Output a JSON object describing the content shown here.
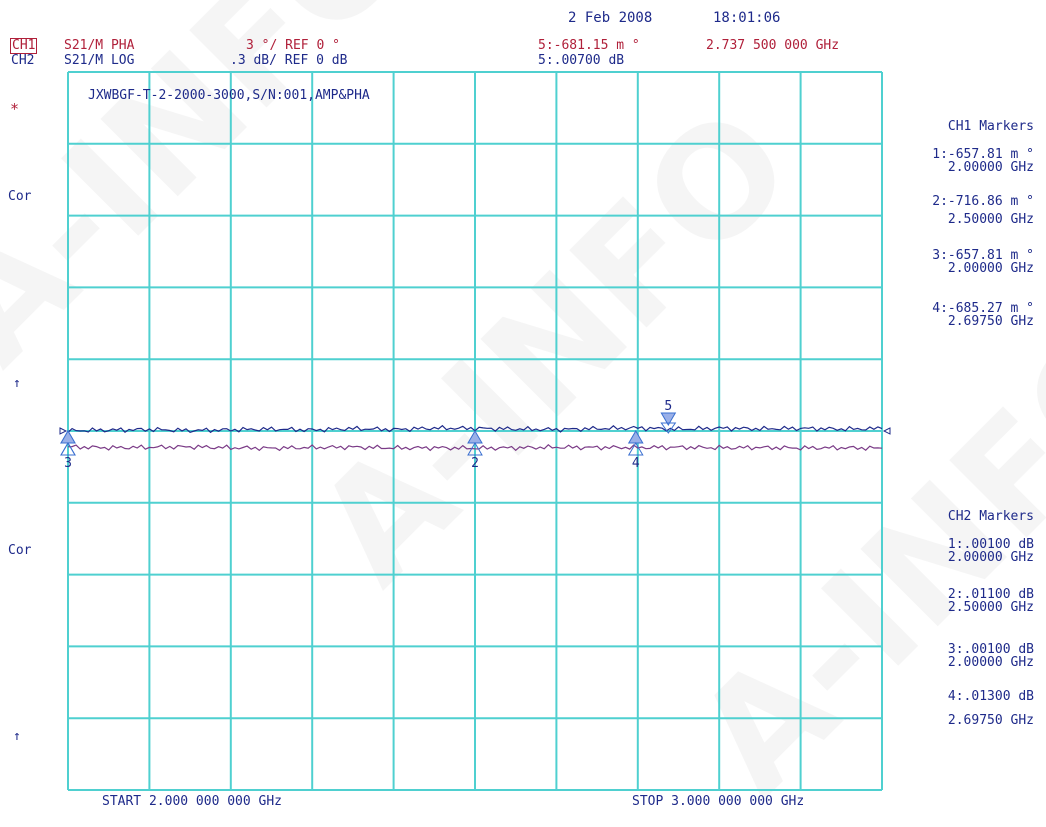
{
  "header": {
    "date": "2 Feb 2008",
    "time": "18:01:06",
    "ch1_tag": "CH1",
    "ch2_tag": "CH2",
    "ch1_meas": "S21/M PHA",
    "ch2_meas": "S21/M LOG",
    "ch1_scale": "3 °/ REF 0 °",
    "ch2_scale": ".3 dB/ REF 0 dB",
    "active_marker_ch1": "5:-681.15 m °",
    "active_marker_ch2": "5:.00700 dB",
    "active_marker_freq": "2.737 500 000 GHz"
  },
  "left_labels": {
    "star": "*",
    "cor1": "Cor",
    "arrow1": "↑",
    "cor2": "Cor",
    "arrow2": "↑"
  },
  "plot_title": "JXWBGF-T-2-2000-3000,S/N:001,AMP&PHA",
  "start_label": "START  2.000 000 000 GHz",
  "stop_label": "STOP  3.000 000 000 GHz",
  "ch1_markers": {
    "title": "CH1 Markers",
    "items": [
      {
        "value": "1:-657.81 m °",
        "freq": "2.00000 GHz"
      },
      {
        "value": "2:-716.86 m °",
        "freq": "2.50000 GHz"
      },
      {
        "value": "3:-657.81 m °",
        "freq": "2.00000 GHz"
      },
      {
        "value": "4:-685.27 m °",
        "freq": "2.69750 GHz"
      }
    ]
  },
  "ch2_markers": {
    "title": "CH2 Markers",
    "items": [
      {
        "value": "1:.00100 dB",
        "freq": "2.00000 GHz"
      },
      {
        "value": "2:.01100 dB",
        "freq": "2.50000 GHz"
      },
      {
        "value": "3:.00100 dB",
        "freq": "2.00000 GHz"
      },
      {
        "value": "4:.01300 dB",
        "freq": "2.69750 GHz"
      }
    ]
  },
  "watermark_text": "A-INFO",
  "colors": {
    "grid": "#4fd0d0",
    "ch1_trace": "#7a3a86",
    "ch2_trace": "#1e2a8a",
    "text": "#1e2a8a",
    "marker": "#3a6fd0"
  },
  "chart_data": {
    "type": "line",
    "x_unit": "GHz",
    "xlim": [
      2.0,
      3.0
    ],
    "grid": true,
    "divisions": {
      "x": 10,
      "y": 10
    },
    "series": [
      {
        "name": "S21/M PHA",
        "unit": "°",
        "scale_per_div": 3,
        "ref": 0,
        "x": [
          2.0,
          2.05,
          2.1,
          2.15,
          2.2,
          2.25,
          2.3,
          2.35,
          2.4,
          2.45,
          2.5,
          2.55,
          2.6,
          2.65,
          2.7,
          2.75,
          2.8,
          2.85,
          2.9,
          2.95,
          3.0
        ],
        "values": [
          -0.66,
          -0.7,
          -0.68,
          -0.66,
          -0.7,
          -0.72,
          -0.69,
          -0.67,
          -0.71,
          -0.7,
          -0.72,
          -0.7,
          -0.68,
          -0.69,
          -0.69,
          -0.68,
          -0.7,
          -0.69,
          -0.71,
          -0.7,
          -0.72
        ]
      },
      {
        "name": "S21/M LOG",
        "unit": "dB",
        "scale_per_div": 0.3,
        "ref": 0,
        "x": [
          2.0,
          2.05,
          2.1,
          2.15,
          2.2,
          2.25,
          2.3,
          2.35,
          2.4,
          2.45,
          2.5,
          2.55,
          2.6,
          2.65,
          2.7,
          2.75,
          2.8,
          2.85,
          2.9,
          2.95,
          3.0
        ],
        "values": [
          0.001,
          0.004,
          0.006,
          0.002,
          0.005,
          0.008,
          0.004,
          0.01,
          0.006,
          0.012,
          0.011,
          0.008,
          0.006,
          0.01,
          0.013,
          0.007,
          0.012,
          0.009,
          0.011,
          0.008,
          0.01
        ]
      }
    ],
    "markers": [
      {
        "id": "1",
        "x": 2.0
      },
      {
        "id": "2",
        "x": 2.5
      },
      {
        "id": "3",
        "x": 2.0
      },
      {
        "id": "4",
        "x": 2.6975
      },
      {
        "id": "5",
        "x": 2.7375
      }
    ]
  }
}
